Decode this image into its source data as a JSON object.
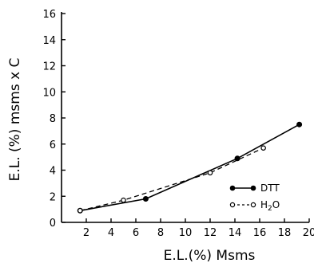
{
  "chart_data": {
    "type": "line",
    "xlabel": "E.L.(%) Msms",
    "ylabel": "E.L. (%) msms x C",
    "xlim": [
      0,
      20
    ],
    "ylim": [
      0,
      16
    ],
    "xticks": [
      2,
      4,
      6,
      8,
      10,
      12,
      14,
      16,
      18,
      20
    ],
    "yticks": [
      0,
      2,
      4,
      6,
      8,
      10,
      12,
      14,
      16
    ],
    "grid": false,
    "legend_position": "bottom-right",
    "series": [
      {
        "name": "DTT",
        "marker": "filled-circle",
        "line": "solid",
        "x": [
          1.5,
          6.8,
          14.2,
          19.2
        ],
        "y": [
          0.9,
          1.8,
          4.9,
          7.5
        ]
      },
      {
        "name": "H2O",
        "marker": "open-circle",
        "line": "dashed",
        "x": [
          1.5,
          5.0,
          12.0,
          16.3
        ],
        "y": [
          0.9,
          1.7,
          3.8,
          5.7
        ]
      }
    ]
  },
  "legend": {
    "dtt_label": "DTT",
    "h2o_prefix": "H",
    "h2o_sub": "2",
    "h2o_suffix": "O"
  }
}
